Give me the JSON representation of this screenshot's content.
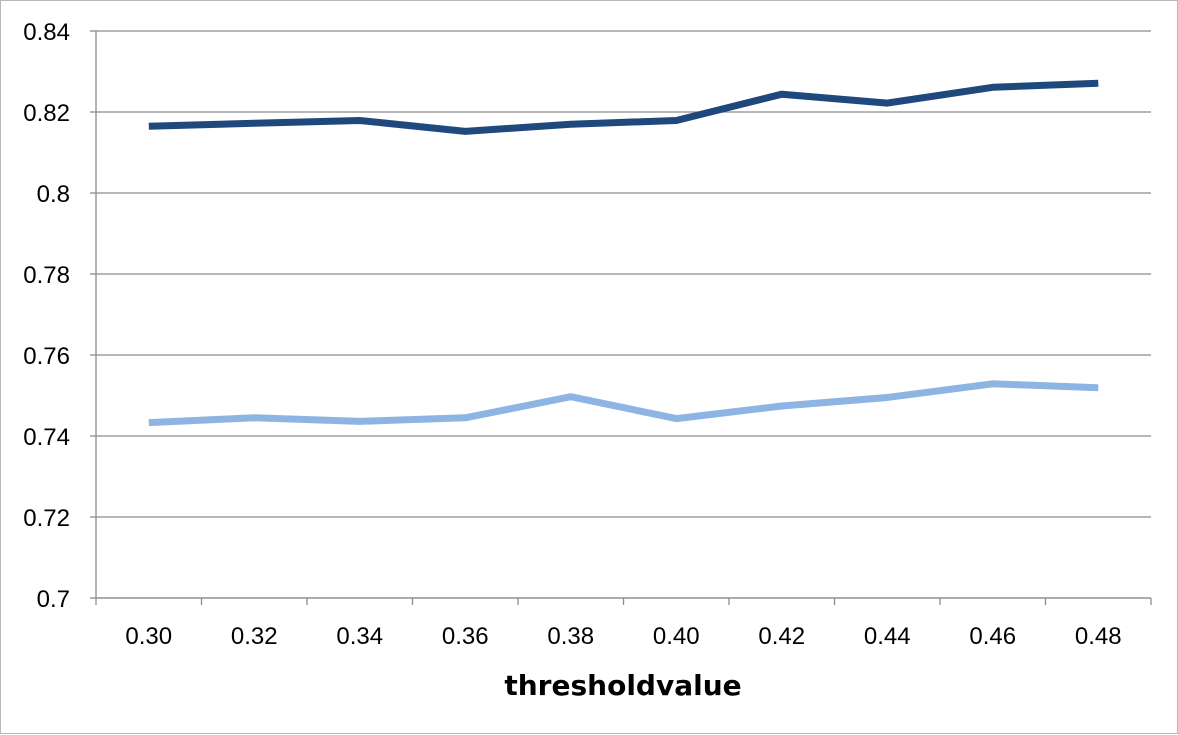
{
  "chart_data": {
    "type": "line",
    "title": "",
    "xlabel": "thresholdvalue",
    "ylabel": "",
    "categories": [
      "0.30",
      "0.32",
      "0.34",
      "0.36",
      "0.38",
      "0.40",
      "0.42",
      "0.44",
      "0.46",
      "0.48"
    ],
    "ylim": [
      0.7,
      0.84
    ],
    "yticks": [
      "0.7",
      "0.72",
      "0.74",
      "0.76",
      "0.78",
      "0.8",
      "0.82",
      "0.84"
    ],
    "ytick_values": [
      0.7,
      0.72,
      0.74,
      0.76,
      0.78,
      0.8,
      0.82,
      0.84
    ],
    "grid": true,
    "legend": "none",
    "series": [
      {
        "color": "#1f497d",
        "values": [
          0.8165,
          0.8172,
          0.8179,
          0.8152,
          0.817,
          0.8179,
          0.8244,
          0.8222,
          0.8261,
          0.8271
        ]
      },
      {
        "color": "#8db4e2",
        "values": [
          0.7433,
          0.7445,
          0.7436,
          0.7445,
          0.7497,
          0.7443,
          0.7474,
          0.7495,
          0.7529,
          0.7519
        ]
      }
    ]
  }
}
